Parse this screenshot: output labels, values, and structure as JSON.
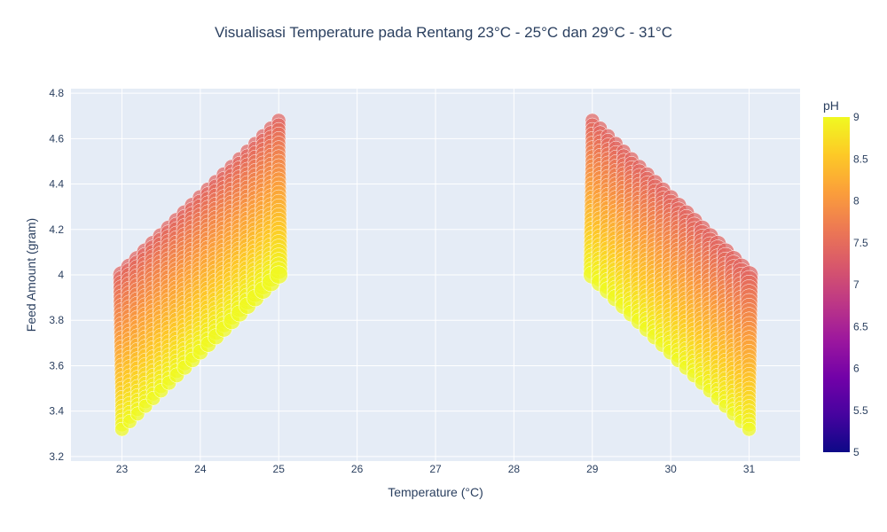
{
  "chart_data": {
    "type": "scatter",
    "title": "Visualisasi Temperature pada Rentang 23°C - 25°C dan 29°C - 31°C",
    "xlabel": "Temperature (°C)",
    "ylabel": "Feed Amount (gram)",
    "xlim": [
      22.35,
      31.65
    ],
    "ylim": [
      3.18,
      4.82
    ],
    "x_ticks": [
      23,
      24,
      25,
      26,
      27,
      28,
      29,
      30,
      31
    ],
    "y_ticks": [
      3.2,
      3.4,
      3.6,
      3.8,
      4,
      4.2,
      4.4,
      4.6,
      4.8
    ],
    "y_tick_labels": [
      "3.2",
      "3.4",
      "3.6",
      "3.8",
      "4",
      "4.2",
      "4.4",
      "4.6",
      "4.8"
    ],
    "grid": true,
    "plot_background": "#e5ecf6",
    "marker_size_range": [
      1,
      12
    ],
    "colorbar": {
      "title": "pH",
      "range": [
        5,
        9
      ],
      "ticks": [
        5,
        5.5,
        6,
        6.5,
        7,
        7.5,
        8,
        8.5,
        9
      ],
      "tick_labels": [
        "5",
        "5.5",
        "6",
        "6.5",
        "7",
        "7.5",
        "8",
        "8.5",
        "9"
      ],
      "colorscale": [
        "#0d0887",
        "#46039f",
        "#7201a8",
        "#9c179e",
        "#bd3786",
        "#d8576b",
        "#ed7953",
        "#fb9f3a",
        "#fdca26",
        "#f0f921"
      ],
      "placement": "right"
    },
    "regions": [
      {
        "temp_range": [
          23,
          25
        ],
        "temp_step": 0.1,
        "bottom_feed": [
          4.0,
          4.0
        ],
        "top_feed": [
          4.0,
          4.68
        ],
        "lower_edge": [
          3.32,
          4.0
        ],
        "ph_low": 7.4,
        "ph_high": 9.0
      },
      {
        "temp_range": [
          29,
          31
        ],
        "temp_step": 0.1,
        "bottom_feed": [
          4.0,
          4.0
        ],
        "top_feed": [
          4.68,
          4.0
        ],
        "lower_edge": [
          4.0,
          3.32
        ],
        "ph_low": 7.4,
        "ph_high": 9.0
      }
    ]
  }
}
